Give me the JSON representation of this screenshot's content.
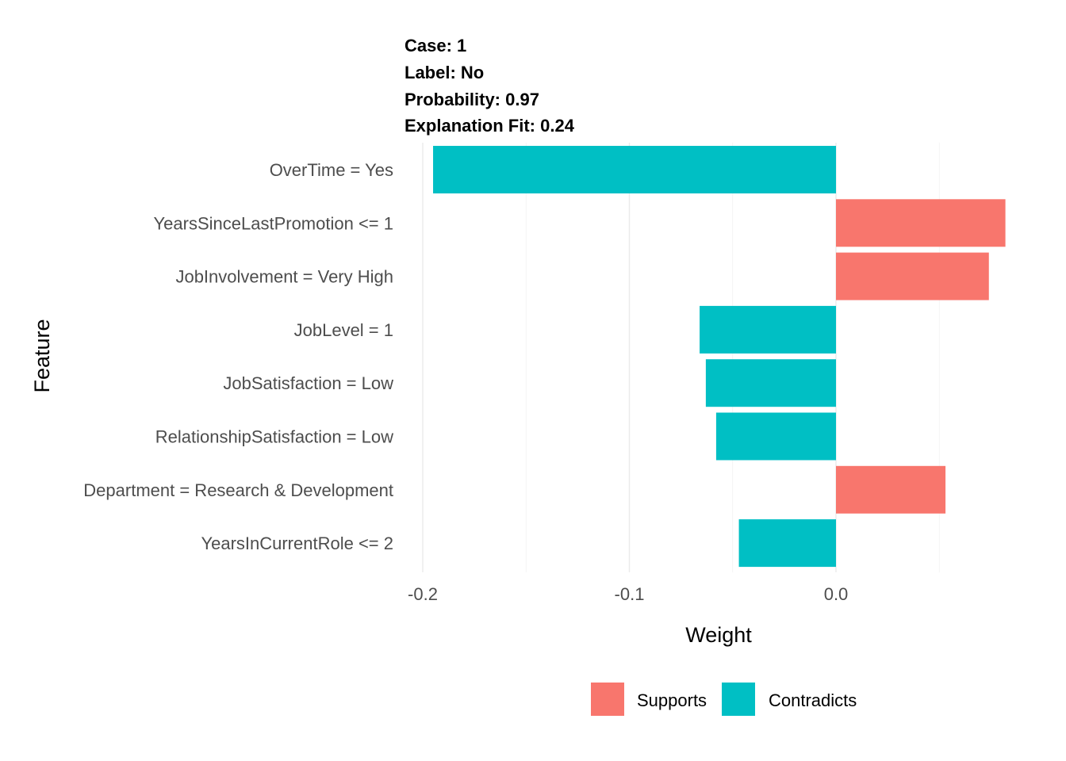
{
  "header": {
    "case": "Case: 1",
    "label": "Label: No",
    "probability": "Probability: 0.97",
    "fit": "Explanation Fit: 0.24"
  },
  "chart_data": {
    "type": "bar",
    "orientation": "horizontal",
    "categories": [
      "OverTime = Yes",
      "YearsSinceLastPromotion <= 1",
      "JobInvolvement = Very High",
      "JobLevel = 1",
      "JobSatisfaction = Low",
      "RelationshipSatisfaction = Low",
      "Department = Research & Development",
      "YearsInCurrentRole <= 2"
    ],
    "values": [
      -0.195,
      0.082,
      0.074,
      -0.066,
      -0.063,
      -0.058,
      0.053,
      -0.047
    ],
    "groups": [
      "Contradicts",
      "Supports",
      "Supports",
      "Contradicts",
      "Contradicts",
      "Contradicts",
      "Supports",
      "Contradicts"
    ],
    "colors": {
      "Supports": "#F8766D",
      "Contradicts": "#00BFC4"
    },
    "xlabel": "Weight",
    "ylabel": "Feature",
    "xlim": [
      -0.2,
      0.087
    ],
    "xticks": [
      "-0.2",
      "-0.1",
      "0.0"
    ],
    "grid": true,
    "legend": {
      "position": "bottom",
      "items": [
        "Supports",
        "Contradicts"
      ]
    }
  }
}
